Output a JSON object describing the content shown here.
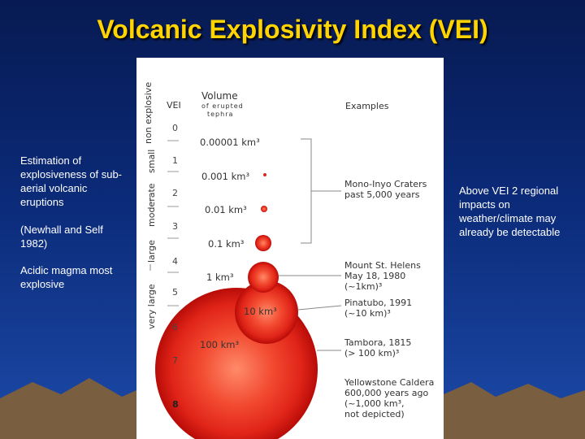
{
  "slide": {
    "title": "Volcanic Explosivity Index (VEI)",
    "left_text": {
      "p1": "Estimation of explosiveness of sub-aerial volcanic eruptions",
      "p2": "(Newhall and Self 1982)",
      "p3": "Acidic magma most explosive"
    },
    "right_text": "Above VEI 2 regional impacts on weather/climate may already be detectable"
  },
  "diagram": {
    "headers": {
      "vei": "VEI",
      "volume": "Volume",
      "volume_sub1": "of erupted",
      "volume_sub2": "tephra",
      "examples": "Examples"
    },
    "categories": {
      "non_explosive": "non explosive",
      "small": "small",
      "moderate": "moderate",
      "large": "large",
      "very_large": "very large"
    },
    "vei_levels": [
      "0",
      "1",
      "2",
      "3",
      "4",
      "5",
      "6",
      "7",
      "8"
    ],
    "volumes": [
      "0.00001 km³",
      "0.001 km³",
      "0.01 km³",
      "0.1 km³",
      "1 km³",
      "10 km³",
      "100 km³"
    ],
    "examples": [
      {
        "l1": "Mono-Inyo Craters",
        "l2": "past 5,000 years"
      },
      {
        "l1": "Mount St. Helens",
        "l2": "May 18, 1980",
        "l3": "(~1km)³"
      },
      {
        "l1": "Pinatubo, 1991",
        "l2": "(~10 km)³"
      },
      {
        "l1": "Tambora, 1815",
        "l2": "(> 100 km)³"
      },
      {
        "l1": "Yellowstone Caldera",
        "l2": "600,000 years ago",
        "l3": "(~1,000 km³,",
        "l4": "not depicted)"
      }
    ],
    "colors": {
      "sphere_light": "#ff8a6a",
      "sphere_mid": "#e8281a",
      "sphere_dark": "#b80c08"
    }
  }
}
